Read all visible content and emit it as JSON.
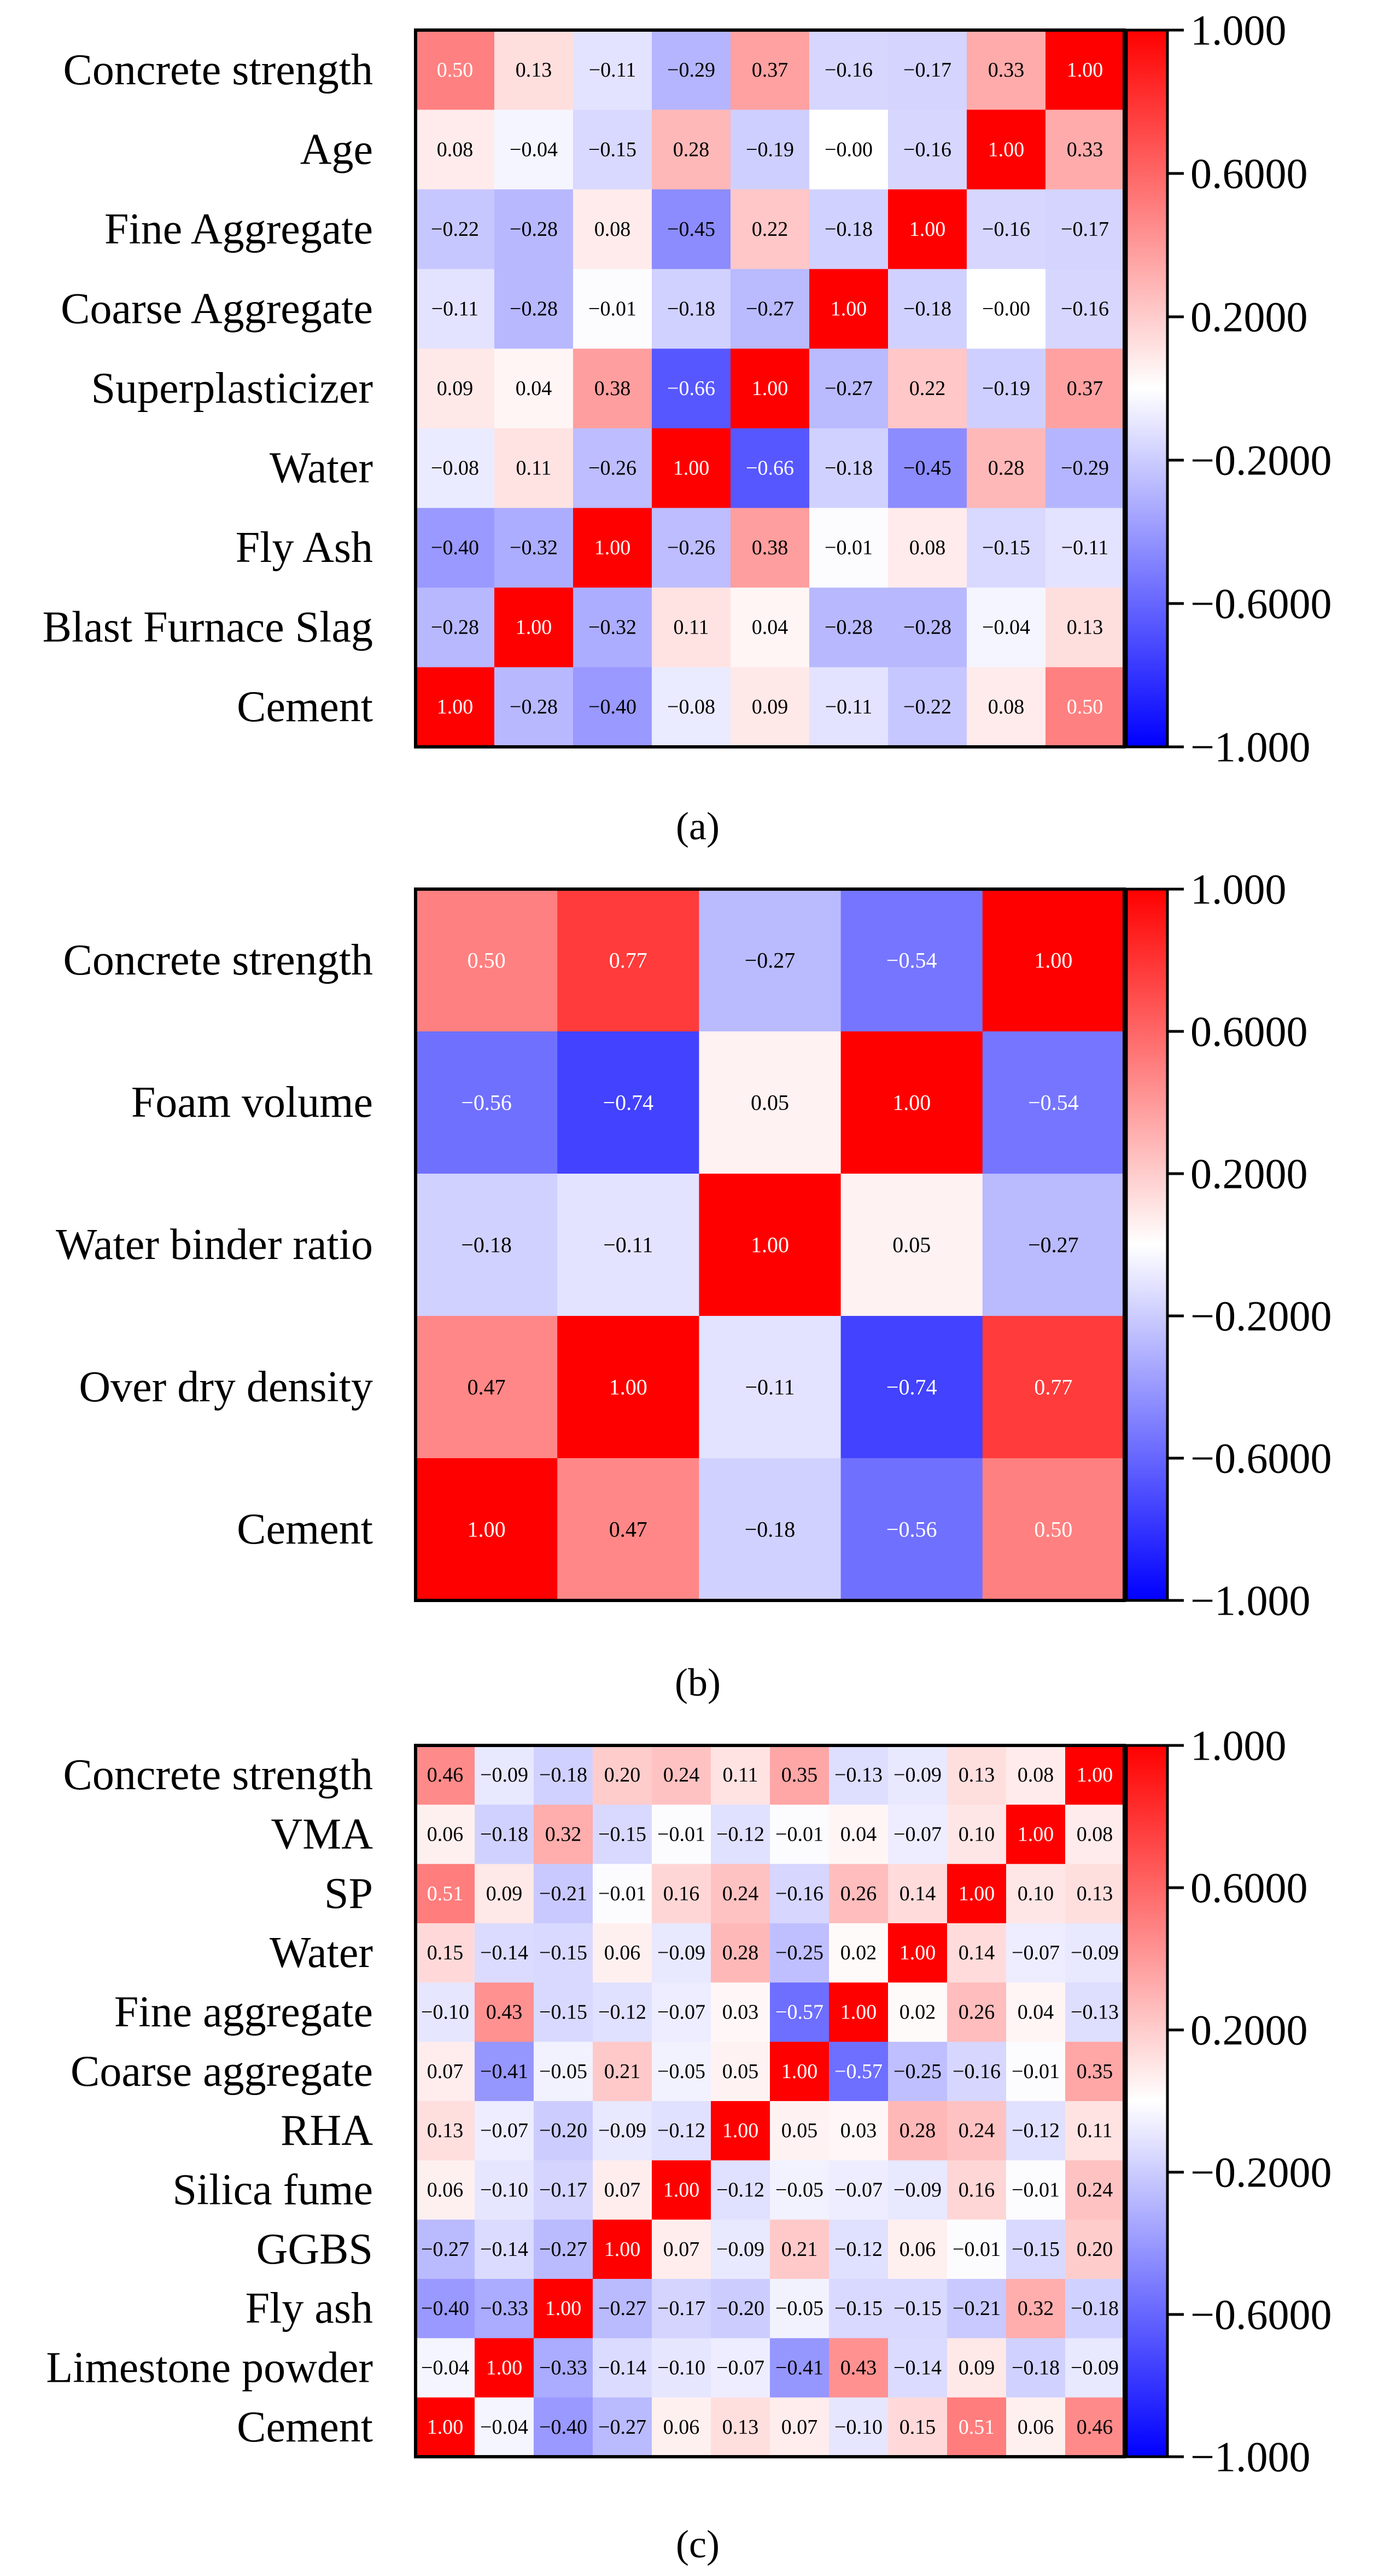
{
  "chart_data": [
    {
      "type": "heatmap",
      "caption": "(a)",
      "row_labels": [
        "Concrete strength",
        "Age",
        "Fine Aggregate",
        "Coarse Aggregate",
        "Superplasticizer",
        "Water",
        "Fly Ash",
        "Blast Furnace Slag",
        "Cement"
      ],
      "values": [
        [
          "0.50",
          "0.13",
          "−0.11",
          "−0.29",
          "0.37",
          "−0.16",
          "−0.17",
          "0.33",
          "1.00"
        ],
        [
          "0.08",
          "−0.04",
          "−0.15",
          "0.28",
          "−0.19",
          "−0.00",
          "−0.16",
          "1.00",
          "0.33"
        ],
        [
          "−0.22",
          "−0.28",
          "0.08",
          "−0.45",
          "0.22",
          "−0.18",
          "1.00",
          "−0.16",
          "−0.17"
        ],
        [
          "−0.11",
          "−0.28",
          "−0.01",
          "−0.18",
          "−0.27",
          "1.00",
          "−0.18",
          "−0.00",
          "−0.16"
        ],
        [
          "0.09",
          "0.04",
          "0.38",
          "−0.66",
          "1.00",
          "−0.27",
          "0.22",
          "−0.19",
          "0.37"
        ],
        [
          "−0.08",
          "0.11",
          "−0.26",
          "1.00",
          "−0.66",
          "−0.18",
          "−0.45",
          "0.28",
          "−0.29"
        ],
        [
          "−0.40",
          "−0.32",
          "1.00",
          "−0.26",
          "0.38",
          "−0.01",
          "0.08",
          "−0.15",
          "−0.11"
        ],
        [
          "−0.28",
          "1.00",
          "−0.32",
          "0.11",
          "0.04",
          "−0.28",
          "−0.28",
          "−0.04",
          "0.13"
        ],
        [
          "1.00",
          "−0.28",
          "−0.40",
          "−0.08",
          "0.09",
          "−0.11",
          "−0.22",
          "0.08",
          "0.50"
        ]
      ],
      "colorbar": {
        "ticks": [
          "1.000",
          "0.6000",
          "0.2000",
          "−0.2000",
          "−0.6000",
          "−1.000"
        ],
        "range": [
          -1,
          1
        ]
      }
    },
    {
      "type": "heatmap",
      "caption": "(b)",
      "row_labels": [
        "Concrete strength",
        "Foam volume",
        "Water binder ratio",
        "Over dry density",
        "Cement"
      ],
      "values": [
        [
          "0.50",
          "0.77",
          "−0.27",
          "−0.54",
          "1.00"
        ],
        [
          "−0.56",
          "−0.74",
          "0.05",
          "1.00",
          "−0.54"
        ],
        [
          "−0.18",
          "−0.11",
          "1.00",
          "0.05",
          "−0.27"
        ],
        [
          "0.47",
          "1.00",
          "−0.11",
          "−0.74",
          "0.77"
        ],
        [
          "1.00",
          "0.47",
          "−0.18",
          "−0.56",
          "0.50"
        ]
      ],
      "colorbar": {
        "ticks": [
          "1.000",
          "0.6000",
          "0.2000",
          "−0.2000",
          "−0.6000",
          "−1.000"
        ],
        "range": [
          -1,
          1
        ]
      }
    },
    {
      "type": "heatmap",
      "caption": "(c)",
      "row_labels": [
        "Concrete strength",
        "VMA",
        "SP",
        "Water",
        "Fine aggregate",
        "Coarse aggregate",
        "RHA",
        "Silica fume",
        "GGBS",
        "Fly ash",
        "Limestone powder",
        "Cement"
      ],
      "values": [
        [
          "0.46",
          "−0.09",
          "−0.18",
          "0.20",
          "0.24",
          "0.11",
          "0.35",
          "−0.13",
          "−0.09",
          "0.13",
          "0.08",
          "1.00"
        ],
        [
          "0.06",
          "−0.18",
          "0.32",
          "−0.15",
          "−0.01",
          "−0.12",
          "−0.01",
          "0.04",
          "−0.07",
          "0.10",
          "1.00",
          "0.08"
        ],
        [
          "0.51",
          "0.09",
          "−0.21",
          "−0.01",
          "0.16",
          "0.24",
          "−0.16",
          "0.26",
          "0.14",
          "1.00",
          "0.10",
          "0.13"
        ],
        [
          "0.15",
          "−0.14",
          "−0.15",
          "0.06",
          "−0.09",
          "0.28",
          "−0.25",
          "0.02",
          "1.00",
          "0.14",
          "−0.07",
          "−0.09"
        ],
        [
          "−0.10",
          "0.43",
          "−0.15",
          "−0.12",
          "−0.07",
          "0.03",
          "−0.57",
          "1.00",
          "0.02",
          "0.26",
          "0.04",
          "−0.13"
        ],
        [
          "0.07",
          "−0.41",
          "−0.05",
          "0.21",
          "−0.05",
          "0.05",
          "1.00",
          "−0.57",
          "−0.25",
          "−0.16",
          "−0.01",
          "0.35"
        ],
        [
          "0.13",
          "−0.07",
          "−0.20",
          "−0.09",
          "−0.12",
          "1.00",
          "0.05",
          "0.03",
          "0.28",
          "0.24",
          "−0.12",
          "0.11"
        ],
        [
          "0.06",
          "−0.10",
          "−0.17",
          "0.07",
          "1.00",
          "−0.12",
          "−0.05",
          "−0.07",
          "−0.09",
          "0.16",
          "−0.01",
          "0.24"
        ],
        [
          "−0.27",
          "−0.14",
          "−0.27",
          "1.00",
          "0.07",
          "−0.09",
          "0.21",
          "−0.12",
          "0.06",
          "−0.01",
          "−0.15",
          "0.20"
        ],
        [
          "−0.40",
          "−0.33",
          "1.00",
          "−0.27",
          "−0.17",
          "−0.20",
          "−0.05",
          "−0.15",
          "−0.15",
          "−0.21",
          "0.32",
          "−0.18"
        ],
        [
          "−0.04",
          "1.00",
          "−0.33",
          "−0.14",
          "−0.10",
          "−0.07",
          "−0.41",
          "0.43",
          "−0.14",
          "0.09",
          "−0.18",
          "−0.09"
        ],
        [
          "1.00",
          "−0.04",
          "−0.40",
          "−0.27",
          "0.06",
          "0.13",
          "0.07",
          "−0.10",
          "0.15",
          "0.51",
          "0.06",
          "0.46"
        ]
      ],
      "colorbar": {
        "ticks": [
          "1.000",
          "0.6000",
          "0.2000",
          "−0.2000",
          "−0.6000",
          "−1.000"
        ],
        "range": [
          -1,
          1
        ]
      }
    }
  ]
}
